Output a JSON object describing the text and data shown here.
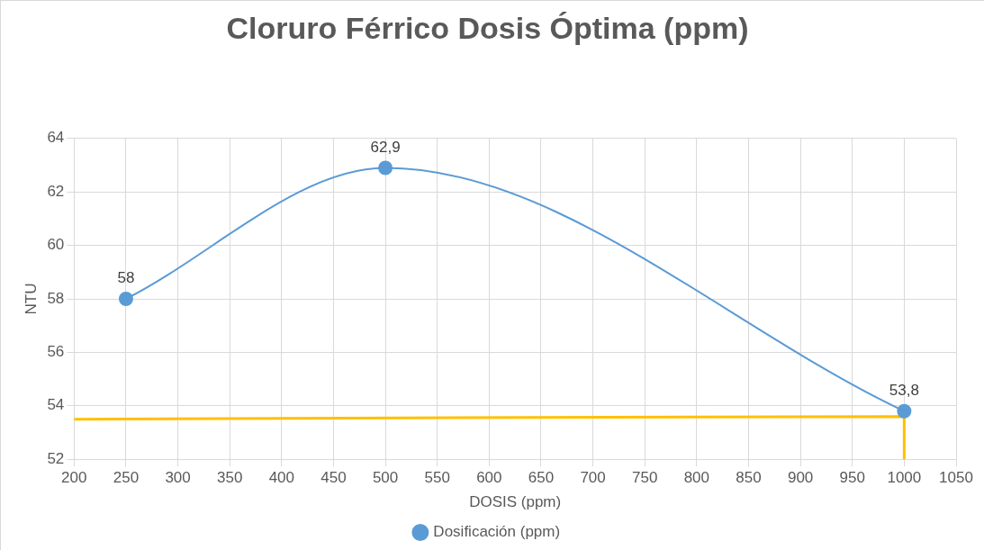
{
  "chart_data": {
    "type": "line",
    "title": "Cloruro Férrico Dosis Óptima (ppm)",
    "xlabel": "DOSIS (ppm)",
    "ylabel": "NTU",
    "xlim": [
      200,
      1050
    ],
    "xticks": [
      200,
      250,
      300,
      350,
      400,
      450,
      500,
      550,
      600,
      650,
      700,
      750,
      800,
      850,
      900,
      950,
      1000,
      1050
    ],
    "ylim": [
      52,
      64
    ],
    "yticks": [
      52,
      54,
      56,
      58,
      60,
      62,
      64
    ],
    "grid": true,
    "legend": "bottom",
    "marker": "circle",
    "series": [
      {
        "name": "Dosificación (ppm)",
        "color": "#5b9bd5",
        "x": [
          250,
          500,
          1000
        ],
        "values": [
          58,
          62.9,
          53.8
        ],
        "value_labels": [
          "58",
          "62,9",
          "53,8"
        ]
      },
      {
        "color": "#ffc000",
        "marker": "none",
        "x": [
          200,
          1000,
          1000
        ],
        "values": [
          53.5,
          53.6,
          52
        ]
      }
    ]
  }
}
